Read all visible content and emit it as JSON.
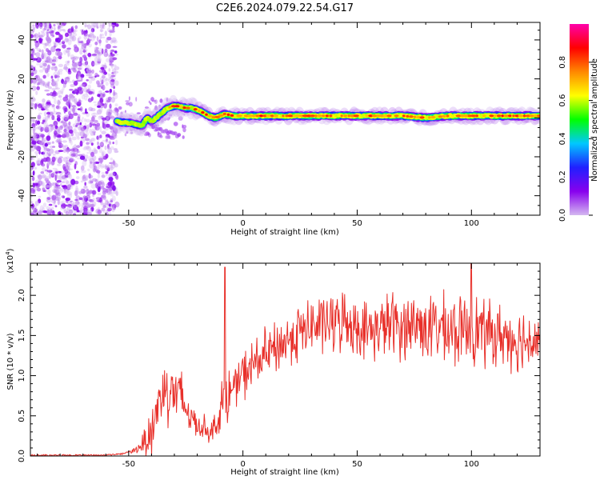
{
  "figure": {
    "title": "C2E6.2024.079.22.54.G17"
  },
  "chart_data": [
    {
      "type": "heatmap",
      "panel": "spectrogram",
      "xlabel": "Height of straight line (km)",
      "ylabel": "Frequency (Hz)",
      "xlim": [
        -93,
        130
      ],
      "ylim": [
        -50,
        49
      ],
      "xticks": [
        -50,
        0,
        50,
        100
      ],
      "yticks": [
        -40,
        -20,
        0,
        20,
        40
      ],
      "grid": false,
      "noise_region_x": [
        -93,
        -55
      ],
      "signal_track": {
        "x": [
          -55,
          -48,
          -44,
          -42,
          -40,
          -37,
          -35,
          -33,
          -31,
          -28,
          -25,
          -22,
          -20,
          -18,
          -15,
          -12,
          -8,
          -4,
          0,
          10,
          20,
          30,
          40,
          50,
          60,
          70,
          80,
          90,
          100,
          110,
          120,
          130
        ],
        "frequency_hz": [
          -2,
          -3,
          -4,
          0,
          -2,
          1,
          3,
          5,
          6,
          6,
          5,
          5,
          4,
          3,
          1,
          0,
          2,
          1,
          1,
          1,
          1,
          1,
          1,
          1,
          1,
          1,
          0,
          1,
          1,
          1,
          1,
          1
        ]
      },
      "colorbar": {
        "label": "Normalized spectral amplitude",
        "range": [
          0,
          1
        ],
        "ticks": [
          "0.0",
          "0.2",
          "0.4",
          "0.6",
          "0.8"
        ],
        "colors": [
          "#d4b8f0",
          "#8800ee",
          "#2020ff",
          "#00c8ff",
          "#00ff00",
          "#ffff00",
          "#ff8800",
          "#ff0000",
          "#ff00aa"
        ]
      }
    },
    {
      "type": "line",
      "panel": "snr",
      "xlabel": "Height of straight line (km)",
      "ylabel": "SNR (10 * v/v)",
      "scale_note_base": "(x10",
      "scale_note_exp": "4",
      "scale_note_end": ")",
      "xlim": [
        -93,
        130
      ],
      "ylim": [
        0,
        2.4
      ],
      "xticks": [
        -50,
        0,
        50,
        100
      ],
      "yticks": [
        "0.0",
        "0.5",
        "1.0",
        "1.5",
        "2.0"
      ],
      "grid": false,
      "series": [
        {
          "color": "#e8302a",
          "envelope_x": [
            -93,
            -60,
            -52,
            -48,
            -45,
            -40,
            -37,
            -35,
            -32,
            -30,
            -27,
            -25,
            -22,
            -20,
            -17,
            -14,
            -11,
            -9,
            -7,
            -5,
            -3,
            0,
            5,
            10,
            15,
            20,
            25,
            30,
            35,
            40,
            45,
            50,
            55,
            60,
            65,
            70,
            75,
            80,
            85,
            90,
            95,
            100,
            105,
            110,
            115,
            120,
            125,
            130
          ],
          "envelope_mean": [
            0.0,
            0.0,
            0.02,
            0.06,
            0.12,
            0.3,
            0.65,
            0.8,
            0.85,
            0.8,
            0.7,
            0.6,
            0.45,
            0.4,
            0.35,
            0.3,
            0.45,
            0.6,
            0.75,
            0.8,
            0.9,
            1.0,
            1.15,
            1.25,
            1.35,
            1.45,
            1.55,
            1.6,
            1.65,
            1.65,
            1.7,
            1.6,
            1.55,
            1.6,
            1.65,
            1.6,
            1.65,
            1.6,
            1.6,
            1.55,
            1.55,
            1.6,
            1.55,
            1.5,
            1.5,
            1.45,
            1.45,
            1.45
          ],
          "envelope_spread": [
            0.01,
            0.01,
            0.02,
            0.04,
            0.08,
            0.5,
            0.45,
            0.55,
            0.5,
            0.5,
            0.5,
            0.35,
            0.25,
            0.2,
            0.2,
            0.15,
            0.2,
            0.5,
            0.45,
            0.3,
            0.35,
            0.35,
            0.4,
            0.4,
            0.4,
            0.4,
            0.45,
            0.45,
            0.45,
            0.45,
            0.45,
            0.4,
            0.45,
            0.45,
            0.5,
            0.5,
            0.5,
            0.5,
            0.5,
            0.55,
            0.5,
            0.55,
            0.5,
            0.5,
            0.45,
            0.5,
            0.45,
            0.45
          ],
          "peaks_x": [
            -8,
            100
          ],
          "peaks_y": [
            2.35,
            2.4
          ],
          "samples": 900
        }
      ]
    }
  ]
}
